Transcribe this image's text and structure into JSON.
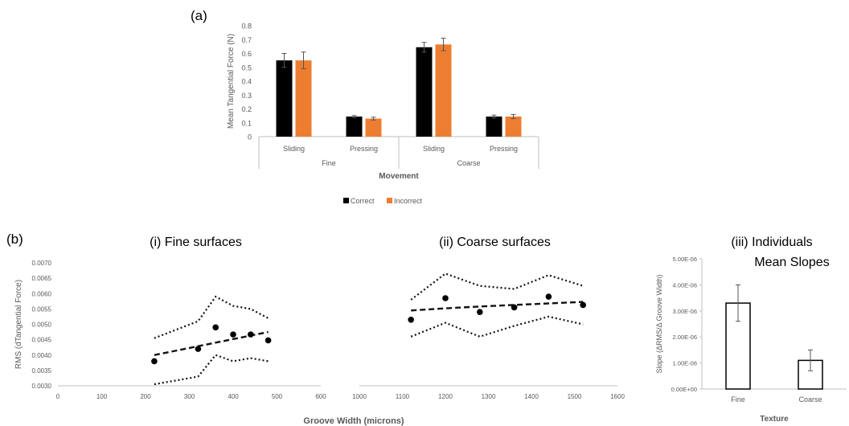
{
  "panel_a": {
    "label": "(a)",
    "legend": [
      {
        "name": "Correct",
        "color": "#000000"
      },
      {
        "name": "Incorrect",
        "color": "#ed7d31"
      }
    ]
  },
  "panel_b": {
    "label": "(b)",
    "shared_xlabel": "Groove Width (microns)"
  },
  "chart_data": [
    {
      "id": "a",
      "type": "bar",
      "title": "",
      "ylabel": "Mean Tangential Force (N)",
      "xlabel": "Movement",
      "ylim": [
        0,
        0.8
      ],
      "yticks": [
        "0",
        "0.1",
        "0.2",
        "0.3",
        "0.4",
        "0.5",
        "0.6",
        "0.7",
        "0.8"
      ],
      "groups": [
        "Fine",
        "Coarse"
      ],
      "categories": [
        "Sliding",
        "Pressing",
        "Sliding",
        "Pressing"
      ],
      "series": [
        {
          "name": "Correct",
          "color": "#000000",
          "values": [
            0.55,
            0.145,
            0.645,
            0.145
          ],
          "errors": [
            0.05,
            0.007,
            0.035,
            0.01
          ]
        },
        {
          "name": "Incorrect",
          "color": "#ed7d31",
          "values": [
            0.55,
            0.13,
            0.665,
            0.145
          ],
          "errors": [
            0.06,
            0.01,
            0.045,
            0.015
          ]
        }
      ],
      "grid": false,
      "legend": "bottom"
    },
    {
      "id": "b-i",
      "type": "scatter",
      "title": "(i) Fine surfaces",
      "ylabel": "RMS (dTangential Force)",
      "xlim": [
        0,
        600
      ],
      "ylim": [
        0.003,
        0.007
      ],
      "xticks": [
        "0",
        "100",
        "200",
        "300",
        "400",
        "500",
        "600"
      ],
      "yticks": [
        "0.0030",
        "0.0035",
        "0.0040",
        "0.0045",
        "0.0050",
        "0.0055",
        "0.0060",
        "0.0065",
        "0.0070"
      ],
      "points": {
        "x": [
          220,
          320,
          360,
          400,
          440,
          480
        ],
        "y": [
          0.0038,
          0.0042,
          0.0049,
          0.00467,
          0.00467,
          0.00448
        ]
      },
      "trend": {
        "x": [
          220,
          480
        ],
        "y": [
          0.004,
          0.00475
        ]
      },
      "upper": {
        "x": [
          220,
          320,
          360,
          400,
          440,
          480
        ],
        "y": [
          0.00455,
          0.0051,
          0.0059,
          0.0056,
          0.0055,
          0.0052
        ]
      },
      "lower": {
        "x": [
          220,
          320,
          360,
          400,
          440,
          480
        ],
        "y": [
          0.00305,
          0.0033,
          0.004,
          0.0038,
          0.0039,
          0.0038
        ]
      }
    },
    {
      "id": "b-ii",
      "type": "scatter",
      "title": "(ii) Coarse surfaces",
      "xlim": [
        1000,
        1600
      ],
      "ylim": [
        0.003,
        0.007
      ],
      "xticks": [
        "1000",
        "1100",
        "1200",
        "1300",
        "1400",
        "1500",
        "1600"
      ],
      "points": {
        "x": [
          1120,
          1200,
          1280,
          1360,
          1440,
          1520
        ],
        "y": [
          0.00515,
          0.00585,
          0.0054,
          0.00555,
          0.0059,
          0.00563
        ]
      },
      "trend": {
        "x": [
          1120,
          1200,
          1280,
          1360,
          1440,
          1520
        ],
        "y": [
          0.00545,
          0.00552,
          0.00558,
          0.00563,
          0.00568,
          0.00573
        ]
      },
      "upper": {
        "x": [
          1120,
          1200,
          1280,
          1360,
          1440,
          1520
        ],
        "y": [
          0.0058,
          0.00665,
          0.00625,
          0.00615,
          0.0066,
          0.00625
        ]
      },
      "lower": {
        "x": [
          1120,
          1200,
          1280,
          1360,
          1440,
          1520
        ],
        "y": [
          0.0046,
          0.00505,
          0.0046,
          0.00495,
          0.00525,
          0.005
        ]
      }
    },
    {
      "id": "b-iii",
      "type": "bar",
      "title_lines": [
        "(iii) Individuals",
        "Mean Slopes"
      ],
      "ylabel": "Slope (ΔRMS/Δ Groove Width)",
      "xlabel": "Texture",
      "ylim": [
        0,
        5e-06
      ],
      "yticks": [
        "0.00E+00",
        "1.00E-06",
        "2.00E-06",
        "3.00E-06",
        "4.00E-06",
        "5.00E-06"
      ],
      "categories": [
        "Fine",
        "Coarse"
      ],
      "values": [
        3.3e-06,
        1.1e-06
      ],
      "errors": [
        7e-07,
        4e-07
      ]
    }
  ]
}
